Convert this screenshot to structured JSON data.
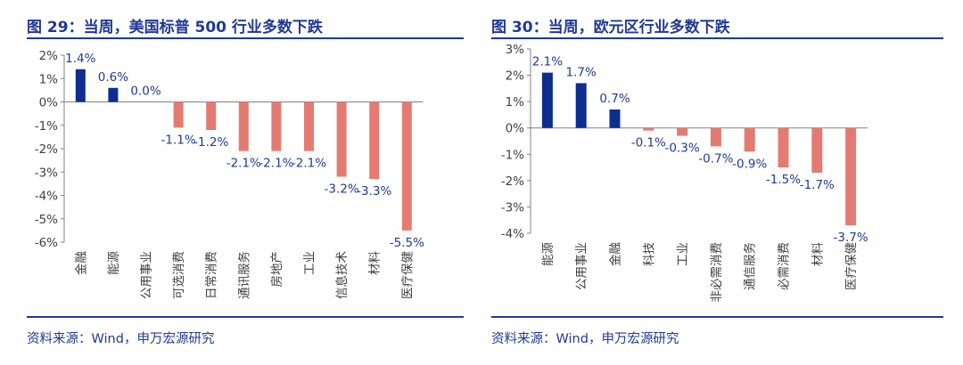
{
  "colors": {
    "positive": "#0d2d8f",
    "negative": "#e47b72",
    "title": "#1f3a93",
    "axis": "#808080"
  },
  "left": {
    "title": "图 29：当周，美国标普 500 行业多数下跌",
    "source": "资料来源：Wind，申万宏源研究"
  },
  "right": {
    "title": "图 30：当周，欧元区行业多数下跌",
    "source": "资料来源：Wind，申万宏源研究"
  },
  "chart_data": [
    {
      "type": "bar",
      "title": "图 29：当周，美国标普 500 行业多数下跌",
      "categories": [
        "金融",
        "能源",
        "公用事业",
        "可选消费",
        "日常消费",
        "通讯服务",
        "房地产",
        "工业",
        "信息技术",
        "材料",
        "医疗保健"
      ],
      "values": [
        1.4,
        0.6,
        0.0,
        -1.1,
        -1.2,
        -2.1,
        -2.1,
        -2.1,
        -3.2,
        -3.3,
        -5.5
      ],
      "data_labels": [
        "1.4%",
        "0.6%",
        "0.0%",
        "-1.1%",
        "-1.2%",
        "-2.1%",
        "-2.1%",
        "-2.1%",
        "-3.2%",
        "-3.3%",
        "-5.5%"
      ],
      "ylim": [
        -6,
        2
      ],
      "yticks": [
        2,
        1,
        0,
        -1,
        -2,
        -3,
        -4,
        -5,
        -6
      ],
      "ytick_labels": [
        "2%",
        "1%",
        "0%",
        "-1%",
        "-2%",
        "-3%",
        "-4%",
        "-5%",
        "-6%"
      ],
      "xlabel": "",
      "ylabel": "",
      "grid": false
    },
    {
      "type": "bar",
      "title": "图 30：当周，欧元区行业多数下跌",
      "categories": [
        "能源",
        "公用事业",
        "金融",
        "科技",
        "工业",
        "非必需消费",
        "通信服务",
        "必需消费",
        "材料",
        "医疗保健"
      ],
      "values": [
        2.1,
        1.7,
        0.7,
        -0.1,
        -0.3,
        -0.7,
        -0.9,
        -1.5,
        -1.7,
        -3.7
      ],
      "data_labels": [
        "2.1%",
        "1.7%",
        "0.7%",
        "-0.1%",
        "-0.3%",
        "-0.7%",
        "-0.9%",
        "-1.5%",
        "-1.7%",
        "-3.7%"
      ],
      "ylim": [
        -4,
        3
      ],
      "yticks": [
        3,
        2,
        1,
        0,
        -1,
        -2,
        -3,
        -4
      ],
      "ytick_labels": [
        "3%",
        "2%",
        "1%",
        "0%",
        "-1%",
        "-2%",
        "-3%",
        "-4%"
      ],
      "xlabel": "",
      "ylabel": "",
      "grid": false
    }
  ]
}
